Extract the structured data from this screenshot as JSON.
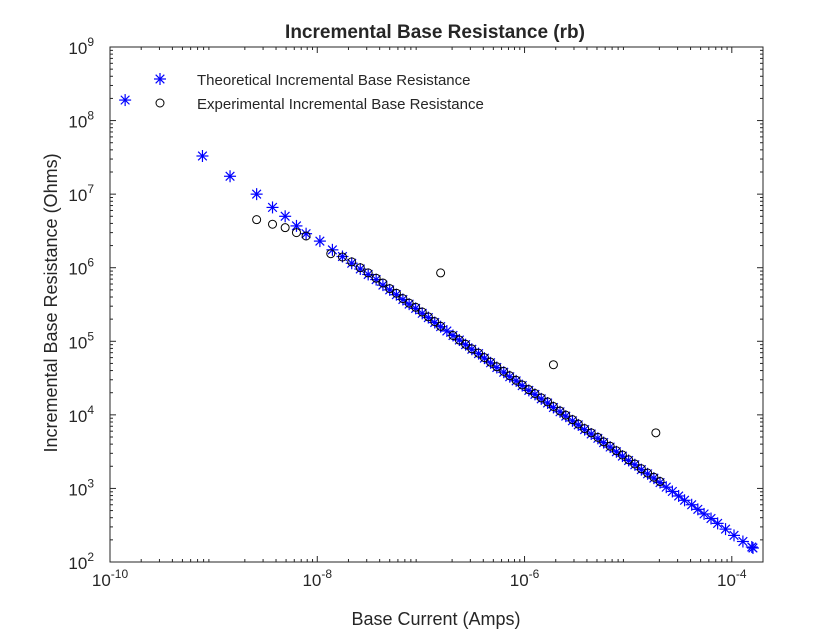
{
  "chart_data": {
    "type": "scatter",
    "title": "Incremental Base Resistance (rb)",
    "xlabel": "Base Current (Amps)",
    "ylabel": "Incremental Base Resistance (Ohms)",
    "xscale": "log",
    "yscale": "log",
    "xlim": [
      1e-10,
      0.0002
    ],
    "ylim": [
      100,
      1000000000
    ],
    "x_ticks": [
      {
        "value": 1e-10,
        "base": "10",
        "exp": "-10"
      },
      {
        "value": 1e-08,
        "base": "10",
        "exp": "-8"
      },
      {
        "value": 1e-06,
        "base": "10",
        "exp": "-6"
      },
      {
        "value": 0.0001,
        "base": "10",
        "exp": "-4"
      }
    ],
    "y_ticks": [
      {
        "value": 100,
        "base": "10",
        "exp": "2"
      },
      {
        "value": 1000,
        "base": "10",
        "exp": "3"
      },
      {
        "value": 10000,
        "base": "10",
        "exp": "4"
      },
      {
        "value": 100000,
        "base": "10",
        "exp": "5"
      },
      {
        "value": 1000000,
        "base": "10",
        "exp": "6"
      },
      {
        "value": 10000000,
        "base": "10",
        "exp": "7"
      },
      {
        "value": 100000000,
        "base": "10",
        "exp": "8"
      },
      {
        "value": 1000000000,
        "base": "10",
        "exp": "9"
      }
    ],
    "grid": false,
    "legend_position": "top-left",
    "series": [
      {
        "name": "Theoretical Incremental Base Resistance",
        "marker": "asterisk",
        "color": "#0000ff",
        "x": [
          1.4e-10,
          7.8e-10,
          1.44e-09,
          2.6e-09,
          3.7e-09,
          4.9e-09,
          6.3e-09,
          7.8e-09,
          1.06e-08,
          1.4e-08,
          1.75e-08,
          2.15e-08,
          2.6e-08,
          3.1e-08,
          3.7e-08,
          4.3e-08,
          5e-08,
          5.8e-08,
          6.7e-08,
          7.7e-08,
          8.9e-08,
          1.03e-07,
          1.18e-07,
          1.36e-07,
          1.55e-07,
          1.78e-07,
          2.04e-07,
          2.35e-07,
          2.7e-07,
          3.1e-07,
          3.6e-07,
          4.1e-07,
          4.7e-07,
          5.4e-07,
          6.3e-07,
          7.2e-07,
          8.3e-07,
          9.5e-07,
          1.1e-06,
          1.26e-06,
          1.45e-06,
          1.67e-06,
          1.9e-06,
          2.2e-06,
          2.5e-06,
          2.9e-06,
          3.3e-06,
          3.8e-06,
          4.4e-06,
          5.1e-06,
          5.8e-06,
          6.7e-06,
          7.7e-06,
          8.8e-06,
          1.01e-05,
          1.16e-05,
          1.34e-05,
          1.54e-05,
          1.77e-05,
          2.03e-05,
          2.33e-05,
          2.67e-05,
          3.07e-05,
          3.5e-05,
          4.1e-05,
          4.7e-05,
          5.4e-05,
          6.3e-05,
          7.3e-05,
          8.7e-05,
          0.000105,
          0.000128,
          0.000156,
          0.00016
        ],
        "y": [
          190000000,
          33000000,
          17500000,
          10000000,
          6600000,
          5000000,
          3700000,
          2900000,
          2300000,
          1750000,
          1420000,
          1150000,
          960000,
          810000,
          690000,
          580000,
          500000,
          430000,
          370000,
          320000,
          280000,
          240000,
          210000,
          180000,
          158000,
          138000,
          120000,
          104000,
          90000,
          78000,
          68000,
          59000,
          51000,
          44000,
          38000,
          33000,
          29000,
          25000,
          21500,
          19000,
          16500,
          14500,
          12600,
          11000,
          9600,
          8300,
          7300,
          6300,
          5500,
          4800,
          4200,
          3650,
          3150,
          2750,
          2400,
          2100,
          1800,
          1580,
          1380,
          1200,
          1040,
          910,
          790,
          690,
          600,
          520,
          450,
          390,
          335,
          280,
          230,
          190,
          160,
          155
        ]
      },
      {
        "name": "Experimental Incremental Base Resistance",
        "marker": "circle",
        "color": "#000000",
        "x": [
          2.6e-09,
          3.7e-09,
          4.9e-09,
          6.3e-09,
          7.8e-09,
          1.35e-08,
          1.75e-08,
          2.15e-08,
          2.6e-08,
          3.1e-08,
          3.7e-08,
          4.3e-08,
          5e-08,
          5.8e-08,
          6.7e-08,
          7.7e-08,
          8.9e-08,
          1.03e-07,
          1.18e-07,
          1.36e-07,
          1.55e-07,
          2.04e-07,
          2.35e-07,
          2.7e-07,
          3.1e-07,
          3.6e-07,
          4.1e-07,
          4.7e-07,
          5.4e-07,
          6.3e-07,
          7.2e-07,
          8.3e-07,
          9.5e-07,
          1.1e-06,
          1.26e-06,
          1.45e-06,
          1.67e-06,
          1.9e-06,
          2.2e-06,
          2.5e-06,
          2.9e-06,
          3.3e-06,
          3.8e-06,
          4.4e-06,
          5.1e-06,
          5.8e-06,
          6.7e-06,
          7.7e-06,
          8.8e-06,
          1.01e-05,
          1.16e-05,
          1.34e-05,
          1.54e-05,
          1.77e-05,
          2.03e-05,
          1.55e-07,
          1.9e-06,
          1.85e-05
        ],
        "y": [
          4500000,
          3900000,
          3500000,
          3000000,
          2700000,
          1550000,
          1400000,
          1200000,
          1000000,
          850000,
          720000,
          620000,
          520000,
          450000,
          380000,
          330000,
          290000,
          250000,
          215000,
          185000,
          160000,
          120000,
          104000,
          91000,
          79000,
          69000,
          60000,
          52000,
          45000,
          39000,
          34000,
          29500,
          25500,
          22000,
          19500,
          17000,
          15000,
          13000,
          11300,
          9900,
          8600,
          7500,
          6500,
          5700,
          4950,
          4300,
          3750,
          3250,
          2850,
          2450,
          2150,
          1850,
          1620,
          1420,
          1240,
          850000,
          48000,
          5700
        ]
      }
    ]
  }
}
